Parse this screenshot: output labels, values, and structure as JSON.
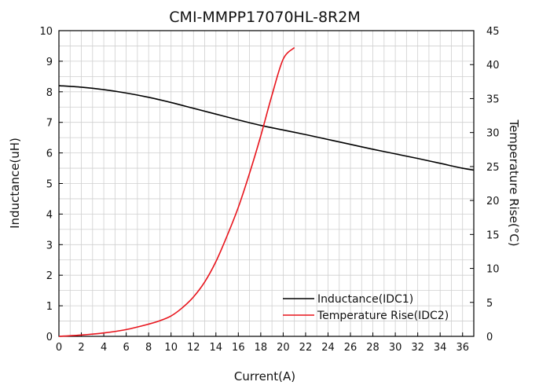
{
  "chart_data": {
    "type": "line",
    "title": "CMI-MMPP17070HL-8R2M",
    "xlabel": "Current(A)",
    "ylabel": "Inductance(uH)",
    "y2label": "Temperature Rise(°C)",
    "xlim": [
      0,
      37
    ],
    "ylim": [
      0,
      10
    ],
    "y2lim": [
      0,
      45
    ],
    "x_ticks": [
      0,
      2,
      4,
      6,
      8,
      10,
      12,
      14,
      16,
      18,
      20,
      22,
      24,
      26,
      28,
      30,
      32,
      34,
      36
    ],
    "y_ticks": [
      0,
      1,
      2,
      3,
      4,
      5,
      6,
      7,
      8,
      9,
      10
    ],
    "y2_ticks": [
      0,
      5,
      10,
      15,
      20,
      25,
      30,
      35,
      40,
      45
    ],
    "grid": true,
    "legend_position": "bottom-right",
    "series": [
      {
        "name": "Inductance(IDC1)",
        "axis": "left",
        "color": "#000000",
        "x": [
          0,
          2,
          4,
          6,
          8,
          10,
          12,
          14,
          16,
          18,
          20,
          22,
          24,
          26,
          28,
          30,
          32,
          34,
          36,
          37
        ],
        "y": [
          8.2,
          8.15,
          8.07,
          7.96,
          7.82,
          7.65,
          7.46,
          7.27,
          7.08,
          6.9,
          6.75,
          6.6,
          6.44,
          6.28,
          6.12,
          5.97,
          5.82,
          5.66,
          5.5,
          5.44
        ]
      },
      {
        "name": "Temperature Rise(IDC2)",
        "axis": "right",
        "color": "#e8141c",
        "x": [
          0,
          2,
          4,
          6,
          8,
          9,
          10,
          11,
          12,
          13,
          14,
          15,
          16,
          17,
          18,
          19,
          20,
          21
        ],
        "y": [
          0,
          0.2,
          0.5,
          1.0,
          1.8,
          2.3,
          3.0,
          4.2,
          5.8,
          8.0,
          11.0,
          14.8,
          19.0,
          24.0,
          29.5,
          35.5,
          40.8,
          42.5
        ]
      }
    ]
  }
}
